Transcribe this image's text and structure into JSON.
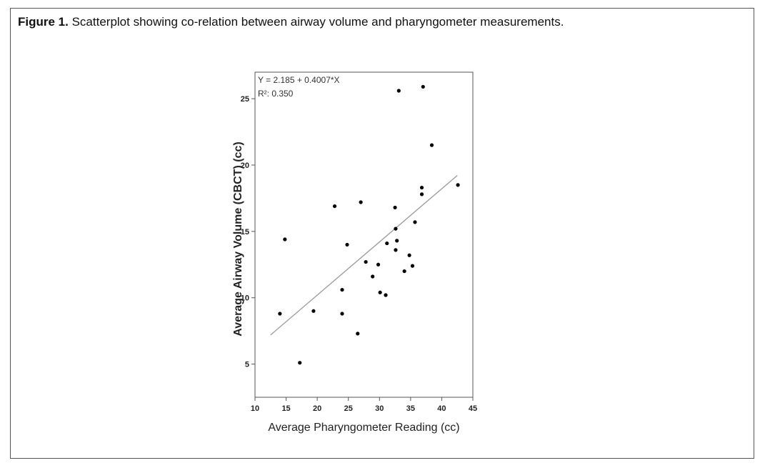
{
  "caption": {
    "label": "Figure 1.",
    "text": " Scatterplot showing co-relation between airway volume and pharyngometer measurements."
  },
  "chart_data": {
    "type": "scatter",
    "title": "",
    "xlabel": "Average Pharyngometer Reading (cc)",
    "ylabel": "Average Airway Volume (CBCT) (cc)",
    "xlim": [
      10,
      45
    ],
    "ylim": [
      2.5,
      27
    ],
    "xticks": [
      10,
      15,
      20,
      25,
      30,
      35,
      40,
      45
    ],
    "yticks": [
      5,
      10,
      15,
      20,
      25
    ],
    "grid": false,
    "annotations": [
      "Y = 2.185 + 0.4007*X",
      "R²: 0.350"
    ],
    "regression": {
      "intercept": 2.185,
      "slope": 0.4007,
      "x_range": [
        12.5,
        42.5
      ],
      "color": "#999999"
    },
    "point_color": "#000000",
    "points": [
      {
        "x": 14.0,
        "y": 8.8
      },
      {
        "x": 14.8,
        "y": 14.4
      },
      {
        "x": 17.2,
        "y": 5.1
      },
      {
        "x": 19.4,
        "y": 9.0
      },
      {
        "x": 22.8,
        "y": 16.9
      },
      {
        "x": 24.0,
        "y": 10.6
      },
      {
        "x": 24.0,
        "y": 8.8
      },
      {
        "x": 24.8,
        "y": 14.0
      },
      {
        "x": 26.5,
        "y": 7.3
      },
      {
        "x": 27.0,
        "y": 17.2
      },
      {
        "x": 27.8,
        "y": 12.7
      },
      {
        "x": 28.9,
        "y": 11.6
      },
      {
        "x": 29.8,
        "y": 12.5
      },
      {
        "x": 30.1,
        "y": 10.4
      },
      {
        "x": 31.0,
        "y": 10.2
      },
      {
        "x": 31.2,
        "y": 14.1
      },
      {
        "x": 32.5,
        "y": 16.8
      },
      {
        "x": 32.6,
        "y": 15.2
      },
      {
        "x": 32.6,
        "y": 13.6
      },
      {
        "x": 32.8,
        "y": 14.3
      },
      {
        "x": 33.1,
        "y": 25.6
      },
      {
        "x": 34.0,
        "y": 12.0
      },
      {
        "x": 34.8,
        "y": 13.2
      },
      {
        "x": 35.3,
        "y": 12.4
      },
      {
        "x": 35.7,
        "y": 15.7
      },
      {
        "x": 36.8,
        "y": 17.8
      },
      {
        "x": 36.8,
        "y": 18.3
      },
      {
        "x": 37.0,
        "y": 25.9
      },
      {
        "x": 38.4,
        "y": 21.5
      },
      {
        "x": 42.6,
        "y": 18.5
      }
    ]
  }
}
